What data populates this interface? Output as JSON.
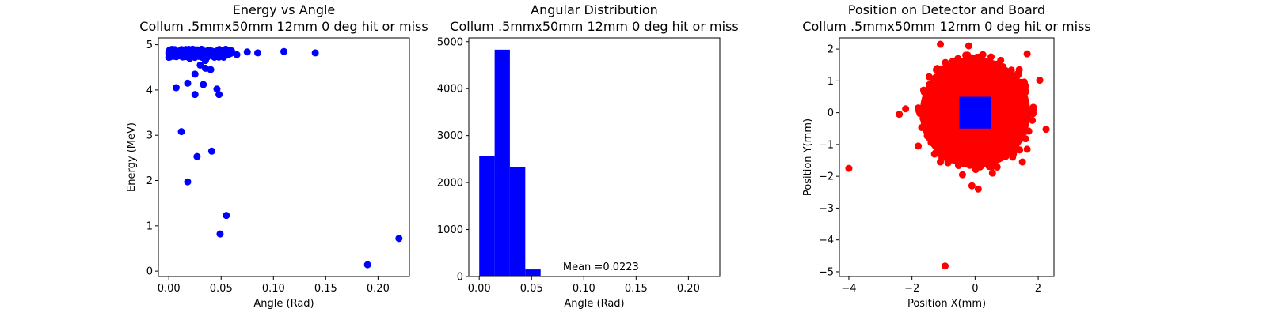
{
  "chart_data": [
    {
      "type": "scatter",
      "title": "Energy vs Angle",
      "subtitle": "Collum .5mmx50mm 12mm 0 deg hit or miss",
      "xlabel": "Angle (Rad)",
      "ylabel": "Energy (MeV)",
      "xlim": [
        -0.01,
        0.23
      ],
      "ylim": [
        -0.12,
        5.15
      ],
      "xticks": [
        0.0,
        0.05,
        0.1,
        0.15,
        0.2
      ],
      "xtick_labels": [
        "0.00",
        "0.05",
        "0.10",
        "0.15",
        "0.20"
      ],
      "yticks": [
        0,
        1,
        2,
        3,
        4,
        5
      ],
      "ytick_labels": [
        "0",
        "1",
        "2",
        "3",
        "4",
        "5"
      ],
      "color": "#0000ff",
      "dense_cluster": {
        "x_range": [
          0.0,
          0.06
        ],
        "y_range": [
          4.72,
          4.9
        ]
      },
      "points": [
        {
          "x": 0.005,
          "y": 4.85
        },
        {
          "x": 0.01,
          "y": 4.8
        },
        {
          "x": 0.015,
          "y": 4.82
        },
        {
          "x": 0.02,
          "y": 4.7
        },
        {
          "x": 0.025,
          "y": 4.88
        },
        {
          "x": 0.03,
          "y": 4.8
        },
        {
          "x": 0.035,
          "y": 4.65
        },
        {
          "x": 0.04,
          "y": 4.78
        },
        {
          "x": 0.045,
          "y": 4.84
        },
        {
          "x": 0.05,
          "y": 4.82
        },
        {
          "x": 0.055,
          "y": 4.85
        },
        {
          "x": 0.06,
          "y": 4.83
        },
        {
          "x": 0.065,
          "y": 4.78
        },
        {
          "x": 0.075,
          "y": 4.84
        },
        {
          "x": 0.085,
          "y": 4.82
        },
        {
          "x": 0.11,
          "y": 4.85
        },
        {
          "x": 0.14,
          "y": 4.82
        },
        {
          "x": 0.03,
          "y": 4.55
        },
        {
          "x": 0.035,
          "y": 4.48
        },
        {
          "x": 0.04,
          "y": 4.45
        },
        {
          "x": 0.025,
          "y": 4.35
        },
        {
          "x": 0.018,
          "y": 4.15
        },
        {
          "x": 0.033,
          "y": 4.12
        },
        {
          "x": 0.007,
          "y": 4.05
        },
        {
          "x": 0.046,
          "y": 4.02
        },
        {
          "x": 0.025,
          "y": 3.9
        },
        {
          "x": 0.048,
          "y": 3.9
        },
        {
          "x": 0.012,
          "y": 3.08
        },
        {
          "x": 0.041,
          "y": 2.65
        },
        {
          "x": 0.027,
          "y": 2.53
        },
        {
          "x": 0.018,
          "y": 1.97
        },
        {
          "x": 0.055,
          "y": 1.23
        },
        {
          "x": 0.049,
          "y": 0.82
        },
        {
          "x": 0.19,
          "y": 0.14
        },
        {
          "x": 0.22,
          "y": 0.72
        }
      ]
    },
    {
      "type": "bar",
      "title": "Angular Distribution",
      "subtitle": "Collum .5mmx50mm 12mm 0 deg hit or miss",
      "xlabel": "Angle (Rad)",
      "ylabel": "",
      "xlim": [
        -0.01,
        0.23
      ],
      "ylim": [
        0,
        5080
      ],
      "xticks": [
        0.0,
        0.05,
        0.1,
        0.15,
        0.2
      ],
      "xtick_labels": [
        "0.00",
        "0.05",
        "0.10",
        "0.15",
        "0.20"
      ],
      "yticks": [
        0,
        1000,
        2000,
        3000,
        4000,
        5000
      ],
      "ytick_labels": [
        "0",
        "1000",
        "2000",
        "3000",
        "4000",
        "5000"
      ],
      "color": "#0000ff",
      "bins": [
        {
          "x0": 0.0,
          "x1": 0.0147,
          "count": 2560
        },
        {
          "x0": 0.0147,
          "x1": 0.0293,
          "count": 4830
        },
        {
          "x0": 0.0293,
          "x1": 0.044,
          "count": 2330
        },
        {
          "x0": 0.044,
          "x1": 0.0587,
          "count": 150
        },
        {
          "x0": 0.0587,
          "x1": 0.0733,
          "count": 4
        },
        {
          "x0": 0.0733,
          "x1": 0.088,
          "count": 3
        },
        {
          "x0": 0.088,
          "x1": 0.1027,
          "count": 0
        },
        {
          "x0": 0.1027,
          "x1": 0.1173,
          "count": 1
        },
        {
          "x0": 0.1173,
          "x1": 0.132,
          "count": 0
        },
        {
          "x0": 0.132,
          "x1": 0.1467,
          "count": 1
        },
        {
          "x0": 0.1467,
          "x1": 0.1613,
          "count": 0
        },
        {
          "x0": 0.1613,
          "x1": 0.176,
          "count": 0
        },
        {
          "x0": 0.176,
          "x1": 0.1907,
          "count": 0
        },
        {
          "x0": 0.1907,
          "x1": 0.2053,
          "count": 1
        },
        {
          "x0": 0.2053,
          "x1": 0.22,
          "count": 1
        }
      ],
      "annotation": {
        "text": "Mean =0.0223",
        "x": 0.08,
        "y": 120
      }
    },
    {
      "type": "scatter",
      "title": "Position on Detector and Board",
      "subtitle": "Collum .5mmx50mm 12mm 0 deg hit or miss",
      "xlabel": "Position X(mm)",
      "ylabel": "Position Y(mm)",
      "xlim": [
        -4.3,
        2.5
      ],
      "ylim": [
        -5.15,
        2.35
      ],
      "xticks": [
        -4,
        -2,
        0,
        2
      ],
      "xtick_labels": [
        "−4",
        "−2",
        "0",
        "2"
      ],
      "yticks": [
        -5,
        -4,
        -3,
        -2,
        -1,
        0,
        1,
        2
      ],
      "ytick_labels": [
        "−5",
        "−4",
        "−3",
        "−2",
        "−1",
        "0",
        "1",
        "2"
      ],
      "color": "#ff0000",
      "cluster": {
        "center": [
          0,
          0
        ],
        "radius": 1.75
      },
      "detector": {
        "x": [
          -0.5,
          0.5
        ],
        "y": [
          -0.5,
          0.5
        ],
        "color": "#0000ff"
      },
      "points": [
        {
          "x": -1.1,
          "y": 2.15
        },
        {
          "x": -0.2,
          "y": 2.1
        },
        {
          "x": 1.65,
          "y": 1.85
        },
        {
          "x": 1.4,
          "y": 1.35
        },
        {
          "x": 2.05,
          "y": 1.02
        },
        {
          "x": -2.2,
          "y": 0.12
        },
        {
          "x": -2.4,
          "y": -0.05
        },
        {
          "x": -1.8,
          "y": 0.15
        },
        {
          "x": 2.25,
          "y": -0.52
        },
        {
          "x": -1.8,
          "y": -1.05
        },
        {
          "x": 1.65,
          "y": -1.15
        },
        {
          "x": -1.1,
          "y": -1.55
        },
        {
          "x": 1.5,
          "y": -1.55
        },
        {
          "x": 0.55,
          "y": -1.9
        },
        {
          "x": -0.4,
          "y": -1.95
        },
        {
          "x": -0.1,
          "y": -2.3
        },
        {
          "x": 0.1,
          "y": -2.4
        },
        {
          "x": -4.0,
          "y": -1.75
        },
        {
          "x": -0.95,
          "y": -4.82
        }
      ]
    }
  ]
}
